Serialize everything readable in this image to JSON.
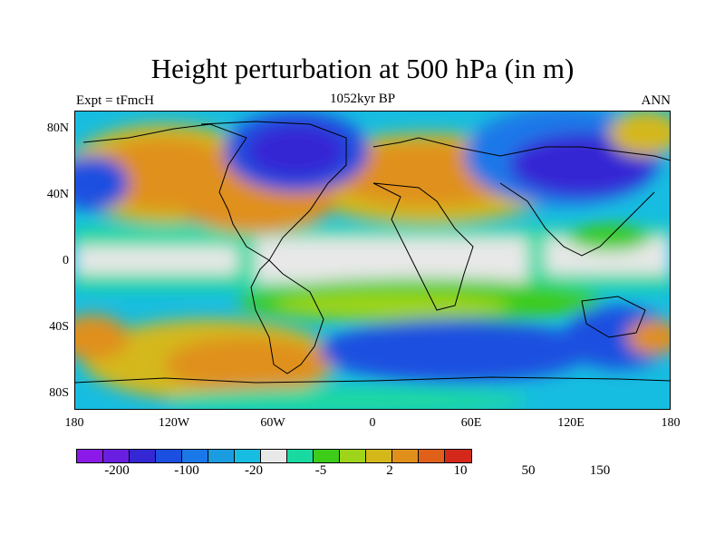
{
  "title": "Height perturbation at 500 hPa (in m)",
  "left_string": "Expt = tFmcH",
  "center_string": "1052kyr BP",
  "right_string": "ANN",
  "y_ticks": [
    "80N",
    "40N",
    "0",
    "40S",
    "80S"
  ],
  "x_ticks": [
    "180",
    "120W",
    "60W",
    "0",
    "60E",
    "120E",
    "180"
  ],
  "colorbar": {
    "colors": [
      "#8b1ae8",
      "#6a1ee0",
      "#3428d4",
      "#1a4fe0",
      "#1a78e8",
      "#1a9de0",
      "#17bde0",
      "#e8e8e8",
      "#1ad9a0",
      "#3dcc1a",
      "#9ed41a",
      "#d4b81a",
      "#e0901a",
      "#e0601a",
      "#d4281a"
    ],
    "labels": [
      "-200",
      "-100",
      "-20",
      "-5",
      "2",
      "10",
      "50",
      "150"
    ]
  }
}
